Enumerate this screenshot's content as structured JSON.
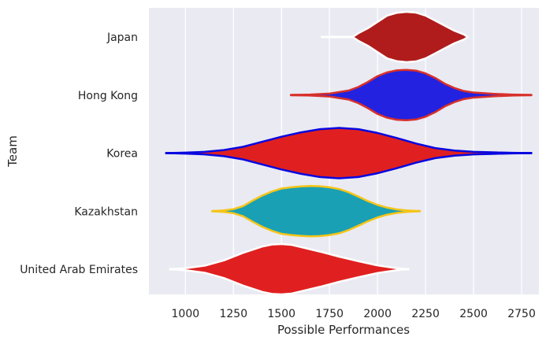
{
  "chart_data": {
    "type": "violin",
    "orientation": "horizontal",
    "xlabel": "Possible Performances",
    "ylabel": "Team",
    "xlim": [
      810,
      2840
    ],
    "xticks": [
      1000,
      1250,
      1500,
      1750,
      2000,
      2250,
      2500,
      2750
    ],
    "grid": true,
    "background_color": "#eaeaf2",
    "categories": [
      "Japan",
      "Hong Kong",
      "Korea",
      "Kazakhstan",
      "United Arab Emirates"
    ],
    "series": [
      {
        "category": "Japan",
        "fill_color": "#b01c1c",
        "edge_color": "#ffffff",
        "whisker_range": [
          1710,
          2450
        ],
        "density": [
          [
            1870,
            0.0
          ],
          [
            1900,
            0.15
          ],
          [
            1950,
            0.35
          ],
          [
            2000,
            0.6
          ],
          [
            2050,
            0.85
          ],
          [
            2100,
            0.96
          ],
          [
            2150,
            1.0
          ],
          [
            2200,
            0.97
          ],
          [
            2250,
            0.85
          ],
          [
            2300,
            0.65
          ],
          [
            2350,
            0.45
          ],
          [
            2400,
            0.25
          ],
          [
            2450,
            0.1
          ],
          [
            2470,
            0.0
          ]
        ]
      },
      {
        "category": "Hong Kong",
        "fill_color": "#2222e0",
        "edge_color": "#d8302a",
        "whisker_range": [
          1550,
          2800
        ],
        "density": [
          [
            1550,
            0.0
          ],
          [
            1650,
            0.02
          ],
          [
            1750,
            0.06
          ],
          [
            1850,
            0.18
          ],
          [
            1900,
            0.32
          ],
          [
            1950,
            0.52
          ],
          [
            2000,
            0.75
          ],
          [
            2050,
            0.9
          ],
          [
            2100,
            0.98
          ],
          [
            2150,
            1.0
          ],
          [
            2200,
            0.97
          ],
          [
            2250,
            0.86
          ],
          [
            2300,
            0.68
          ],
          [
            2350,
            0.45
          ],
          [
            2400,
            0.28
          ],
          [
            2450,
            0.16
          ],
          [
            2500,
            0.1
          ],
          [
            2600,
            0.05
          ],
          [
            2700,
            0.02
          ],
          [
            2800,
            0.0
          ]
        ]
      },
      {
        "category": "Korea",
        "fill_color": "#e02020",
        "edge_color": "#0808e0",
        "whisker_range": [
          900,
          2800
        ],
        "density": [
          [
            900,
            0.0
          ],
          [
            1000,
            0.02
          ],
          [
            1100,
            0.05
          ],
          [
            1200,
            0.12
          ],
          [
            1300,
            0.25
          ],
          [
            1400,
            0.45
          ],
          [
            1500,
            0.65
          ],
          [
            1600,
            0.82
          ],
          [
            1700,
            0.95
          ],
          [
            1800,
            1.0
          ],
          [
            1900,
            0.95
          ],
          [
            2000,
            0.8
          ],
          [
            2100,
            0.6
          ],
          [
            2200,
            0.38
          ],
          [
            2300,
            0.2
          ],
          [
            2400,
            0.1
          ],
          [
            2500,
            0.05
          ],
          [
            2600,
            0.03
          ],
          [
            2700,
            0.01
          ],
          [
            2800,
            0.0
          ]
        ]
      },
      {
        "category": "Kazakhstan",
        "fill_color": "#1aa0b4",
        "edge_color": "#f5c518",
        "whisker_range": [
          1140,
          2220
        ],
        "density": [
          [
            1140,
            0.0
          ],
          [
            1200,
            0.03
          ],
          [
            1250,
            0.08
          ],
          [
            1300,
            0.2
          ],
          [
            1350,
            0.42
          ],
          [
            1400,
            0.62
          ],
          [
            1450,
            0.78
          ],
          [
            1500,
            0.9
          ],
          [
            1550,
            0.95
          ],
          [
            1600,
            0.98
          ],
          [
            1650,
            1.0
          ],
          [
            1700,
            0.99
          ],
          [
            1750,
            0.95
          ],
          [
            1800,
            0.88
          ],
          [
            1850,
            0.75
          ],
          [
            1900,
            0.58
          ],
          [
            1950,
            0.4
          ],
          [
            2000,
            0.25
          ],
          [
            2050,
            0.14
          ],
          [
            2100,
            0.07
          ],
          [
            2150,
            0.03
          ],
          [
            2220,
            0.0
          ]
        ]
      },
      {
        "category": "United Arab Emirates",
        "fill_color": "#e02020",
        "edge_color": "#ffffff",
        "whisker_range": [
          920,
          2160
        ],
        "density": [
          [
            920,
            0.0
          ],
          [
            1000,
            0.04
          ],
          [
            1100,
            0.14
          ],
          [
            1200,
            0.35
          ],
          [
            1300,
            0.65
          ],
          [
            1400,
            0.9
          ],
          [
            1450,
            0.98
          ],
          [
            1500,
            1.0
          ],
          [
            1550,
            0.97
          ],
          [
            1600,
            0.88
          ],
          [
            1700,
            0.7
          ],
          [
            1800,
            0.5
          ],
          [
            1900,
            0.32
          ],
          [
            2000,
            0.15
          ],
          [
            2100,
            0.04
          ],
          [
            2160,
            0.0
          ]
        ]
      }
    ]
  }
}
